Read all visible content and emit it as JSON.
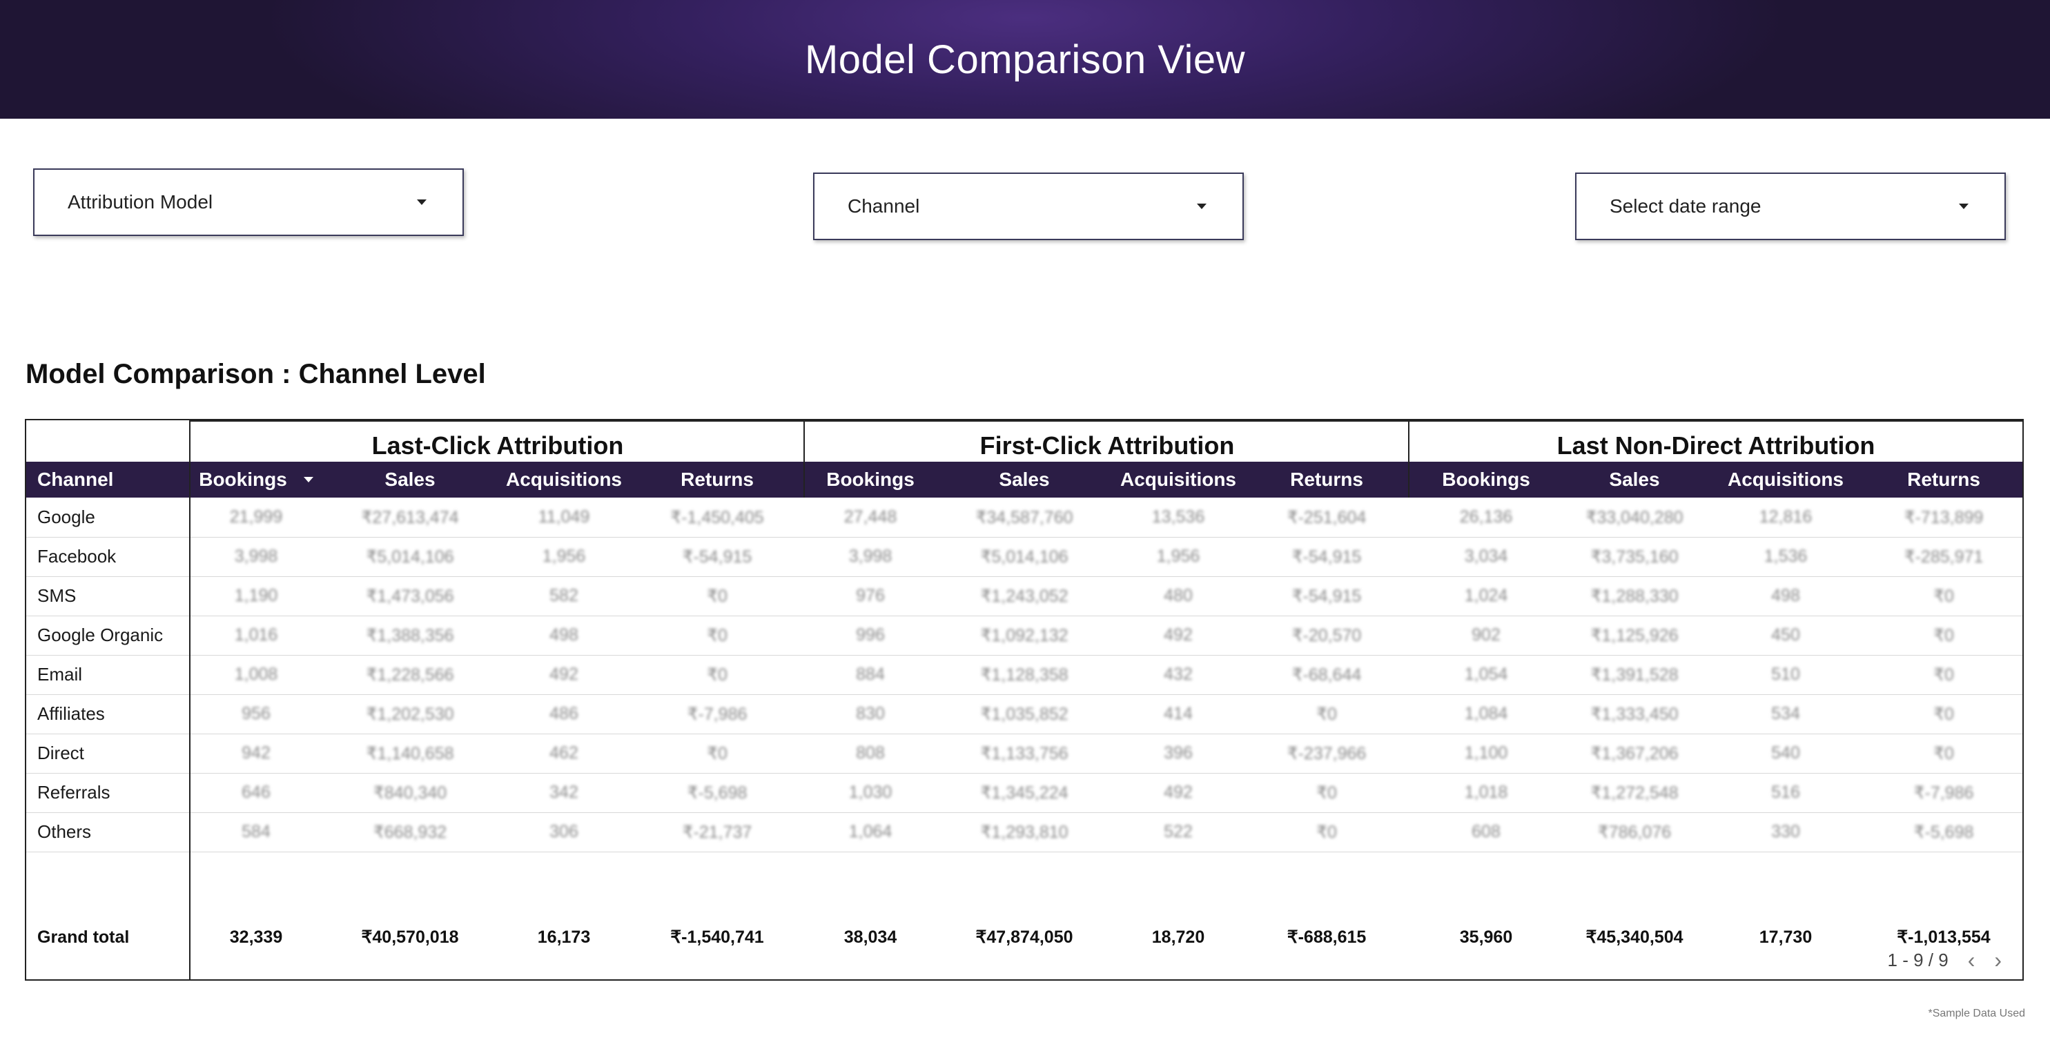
{
  "header": {
    "title": "Model Comparison View"
  },
  "filters": {
    "attribution_model": "Attribution Model",
    "channel": "Channel",
    "date_range": "Select date range"
  },
  "section_title": "Model Comparison : Channel Level",
  "table": {
    "groups": [
      "Last-Click Attribution",
      "First-Click Attribution",
      "Last Non-Direct Attribution"
    ],
    "channel_header": "Channel",
    "metric_headers": [
      "Bookings",
      "Sales",
      "Acquisitions",
      "Returns"
    ],
    "rows": [
      {
        "channel": "Google",
        "values": [
          "21,999",
          "₹27,613,474",
          "11,049",
          "₹-1,450,405",
          "27,448",
          "₹34,587,760",
          "13,536",
          "₹-251,604",
          "26,136",
          "₹33,040,280",
          "12,816",
          "₹-713,899"
        ]
      },
      {
        "channel": "Facebook",
        "values": [
          "3,998",
          "₹5,014,106",
          "1,956",
          "₹-54,915",
          "3,998",
          "₹5,014,106",
          "1,956",
          "₹-54,915",
          "3,034",
          "₹3,735,160",
          "1,536",
          "₹-285,971"
        ]
      },
      {
        "channel": "SMS",
        "values": [
          "1,190",
          "₹1,473,056",
          "582",
          "₹0",
          "976",
          "₹1,243,052",
          "480",
          "₹-54,915",
          "1,024",
          "₹1,288,330",
          "498",
          "₹0"
        ]
      },
      {
        "channel": "Google Organic",
        "values": [
          "1,016",
          "₹1,388,356",
          "498",
          "₹0",
          "996",
          "₹1,092,132",
          "492",
          "₹-20,570",
          "902",
          "₹1,125,926",
          "450",
          "₹0"
        ]
      },
      {
        "channel": "Email",
        "values": [
          "1,008",
          "₹1,228,566",
          "492",
          "₹0",
          "884",
          "₹1,128,358",
          "432",
          "₹-68,644",
          "1,054",
          "₹1,391,528",
          "510",
          "₹0"
        ]
      },
      {
        "channel": "Affiliates",
        "values": [
          "956",
          "₹1,202,530",
          "486",
          "₹-7,986",
          "830",
          "₹1,035,852",
          "414",
          "₹0",
          "1,084",
          "₹1,333,450",
          "534",
          "₹0"
        ]
      },
      {
        "channel": "Direct",
        "values": [
          "942",
          "₹1,140,658",
          "462",
          "₹0",
          "808",
          "₹1,133,756",
          "396",
          "₹-237,966",
          "1,100",
          "₹1,367,206",
          "540",
          "₹0"
        ]
      },
      {
        "channel": "Referrals",
        "values": [
          "646",
          "₹840,340",
          "342",
          "₹-5,698",
          "1,030",
          "₹1,345,224",
          "492",
          "₹0",
          "1,018",
          "₹1,272,548",
          "516",
          "₹-7,986"
        ]
      },
      {
        "channel": "Others",
        "values": [
          "584",
          "₹668,932",
          "306",
          "₹-21,737",
          "1,064",
          "₹1,293,810",
          "522",
          "₹0",
          "608",
          "₹786,076",
          "330",
          "₹-5,698"
        ]
      }
    ],
    "grand_total": {
      "label": "Grand total",
      "values": [
        "32,339",
        "₹40,570,018",
        "16,173",
        "₹-1,540,741",
        "38,034",
        "₹47,874,050",
        "18,720",
        "₹-688,615",
        "35,960",
        "₹45,340,504",
        "17,730",
        "₹-1,013,554"
      ]
    },
    "pagination": "1 - 9 / 9"
  },
  "footnote": "*Sample Data Used",
  "colors": {
    "header_bg": "#2b1d45",
    "banner": "#4b2e7f"
  }
}
